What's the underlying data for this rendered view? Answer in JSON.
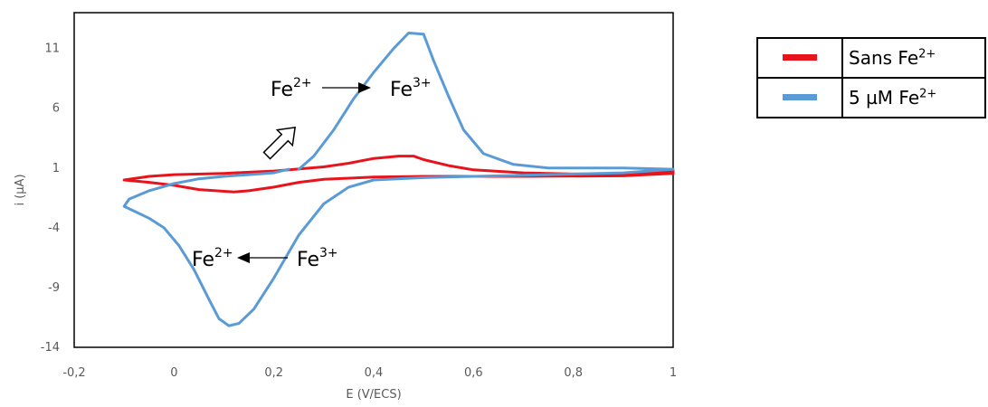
{
  "chart_data": {
    "type": "line",
    "title": "",
    "xlabel": "E (V/ECS)",
    "ylabel": "i (µA)",
    "xlim": [
      -0.2,
      1.0
    ],
    "ylim": [
      -14,
      14
    ],
    "x_ticks": [
      -0.2,
      0,
      0.2,
      0.4,
      0.6,
      0.8,
      1
    ],
    "x_tick_labels": [
      "-0,2",
      "0",
      "0,2",
      "0,4",
      "0,6",
      "0,8",
      "1"
    ],
    "y_ticks": [
      -14,
      -9,
      -4,
      1,
      6,
      11
    ],
    "y_tick_labels": [
      "-14",
      "-9",
      "-4",
      "1",
      "6",
      "11"
    ],
    "grid": false,
    "legend_placement": "right, outside plot",
    "series": [
      {
        "name": "Sans Fe2+",
        "legend_text": "Sans Fe",
        "legend_sup": "2+",
        "color": "#e8141c",
        "points": [
          [
            -0.1,
            0.0
          ],
          [
            -0.05,
            0.3
          ],
          [
            0.0,
            0.45
          ],
          [
            0.1,
            0.55
          ],
          [
            0.2,
            0.75
          ],
          [
            0.3,
            1.1
          ],
          [
            0.35,
            1.4
          ],
          [
            0.4,
            1.8
          ],
          [
            0.45,
            2.0
          ],
          [
            0.48,
            2.0
          ],
          [
            0.5,
            1.7
          ],
          [
            0.55,
            1.2
          ],
          [
            0.6,
            0.85
          ],
          [
            0.7,
            0.6
          ],
          [
            0.8,
            0.5
          ],
          [
            0.9,
            0.5
          ],
          [
            1.0,
            0.75
          ],
          [
            1.0,
            0.55
          ],
          [
            0.9,
            0.35
          ],
          [
            0.7,
            0.3
          ],
          [
            0.5,
            0.3
          ],
          [
            0.4,
            0.25
          ],
          [
            0.3,
            0.05
          ],
          [
            0.25,
            -0.2
          ],
          [
            0.2,
            -0.6
          ],
          [
            0.15,
            -0.9
          ],
          [
            0.12,
            -1.0
          ],
          [
            0.05,
            -0.8
          ],
          [
            0.0,
            -0.45
          ],
          [
            -0.05,
            -0.2
          ],
          [
            -0.1,
            0.0
          ]
        ]
      },
      {
        "name": "5 µM Fe2+",
        "legend_text": "5 µM Fe",
        "legend_sup": "2+",
        "color": "#5b9bd5",
        "points": [
          [
            0.23,
            0.9
          ],
          [
            0.2,
            0.6
          ],
          [
            0.15,
            0.45
          ],
          [
            0.1,
            0.3
          ],
          [
            0.05,
            0.1
          ],
          [
            0.0,
            -0.3
          ],
          [
            -0.05,
            -0.9
          ],
          [
            -0.09,
            -1.6
          ],
          [
            -0.1,
            -2.2
          ],
          [
            -0.08,
            -2.6
          ],
          [
            -0.05,
            -3.2
          ],
          [
            -0.02,
            -4.0
          ],
          [
            0.01,
            -5.5
          ],
          [
            0.04,
            -7.5
          ],
          [
            0.07,
            -10.0
          ],
          [
            0.09,
            -11.6
          ],
          [
            0.11,
            -12.2
          ],
          [
            0.13,
            -12.0
          ],
          [
            0.16,
            -10.8
          ],
          [
            0.2,
            -8.2
          ],
          [
            0.25,
            -4.6
          ],
          [
            0.3,
            -2.0
          ],
          [
            0.35,
            -0.6
          ],
          [
            0.4,
            0.0
          ],
          [
            0.5,
            0.2
          ],
          [
            0.7,
            0.4
          ],
          [
            0.9,
            0.6
          ],
          [
            1.0,
            0.9
          ],
          [
            0.9,
            1.0
          ],
          [
            0.75,
            1.0
          ],
          [
            0.68,
            1.3
          ],
          [
            0.62,
            2.2
          ],
          [
            0.58,
            4.2
          ],
          [
            0.55,
            7.0
          ],
          [
            0.52,
            10.0
          ],
          [
            0.5,
            12.2
          ],
          [
            0.47,
            12.3
          ],
          [
            0.44,
            11.0
          ],
          [
            0.4,
            9.0
          ],
          [
            0.36,
            6.8
          ],
          [
            0.32,
            4.2
          ],
          [
            0.28,
            2.0
          ],
          [
            0.25,
            0.9
          ]
        ]
      }
    ],
    "annotations": [
      {
        "text": "Fe",
        "sup": "2+",
        "label": "Fe2+ (oxidation arrow start)"
      },
      {
        "text": "Fe",
        "sup": "3+",
        "label": "Fe3+ (oxidation arrow end)"
      },
      {
        "text": "Fe",
        "sup": "2+",
        "label": "Fe2+ (reduction arrow end)"
      },
      {
        "text": "Fe",
        "sup": "3+",
        "label": "Fe3+ (reduction arrow start)"
      }
    ]
  }
}
